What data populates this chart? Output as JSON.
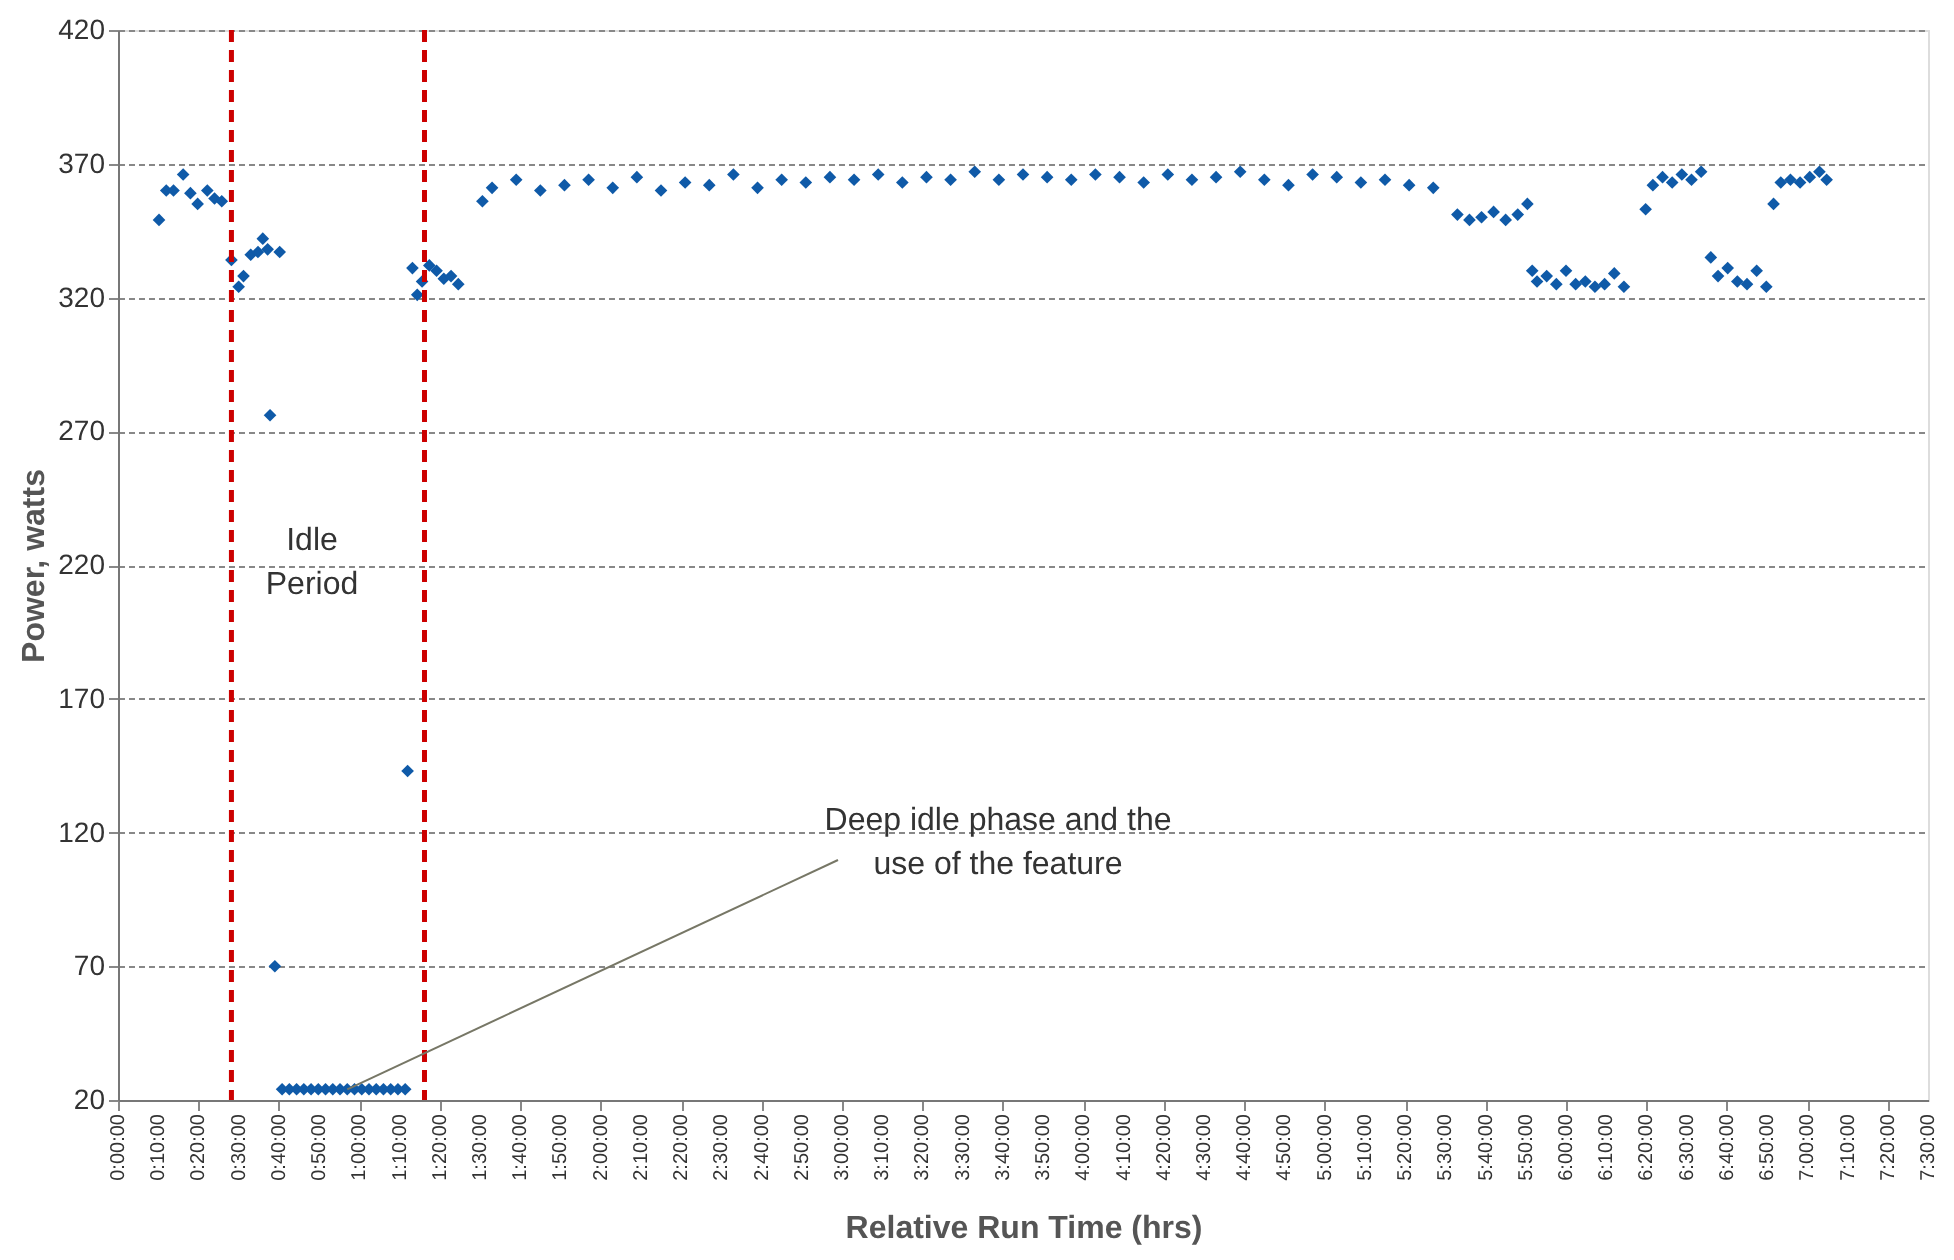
{
  "chart_data": {
    "type": "scatter",
    "xlabel": "Relative Run Time (hrs)",
    "ylabel": "Power, watts",
    "x": [
      0.17,
      0.2,
      0.23,
      0.27,
      0.3,
      0.33,
      0.37,
      0.4,
      0.43,
      0.47,
      0.5,
      0.52,
      0.55,
      0.58,
      0.6,
      0.62,
      0.63,
      0.65,
      0.67,
      0.68,
      0.71,
      0.74,
      0.77,
      0.8,
      0.83,
      0.86,
      0.89,
      0.92,
      0.95,
      0.98,
      1.01,
      1.04,
      1.07,
      1.1,
      1.13,
      1.16,
      1.19,
      1.2,
      1.22,
      1.24,
      1.26,
      1.29,
      1.32,
      1.35,
      1.38,
      1.41,
      1.51,
      1.55,
      1.65,
      1.75,
      1.85,
      1.95,
      2.05,
      2.15,
      2.25,
      2.35,
      2.45,
      2.55,
      2.65,
      2.75,
      2.85,
      2.95,
      3.05,
      3.15,
      3.25,
      3.35,
      3.45,
      3.55,
      3.65,
      3.75,
      3.85,
      3.95,
      4.05,
      4.15,
      4.25,
      4.35,
      4.45,
      4.55,
      4.65,
      4.75,
      4.85,
      4.95,
      5.05,
      5.15,
      5.25,
      5.35,
      5.45,
      5.55,
      5.6,
      5.65,
      5.7,
      5.75,
      5.8,
      5.84,
      5.86,
      5.88,
      5.92,
      5.96,
      6.0,
      6.04,
      6.08,
      6.12,
      6.16,
      6.2,
      6.24,
      6.33,
      6.36,
      6.4,
      6.44,
      6.48,
      6.52,
      6.56,
      6.6,
      6.63,
      6.67,
      6.71,
      6.75,
      6.79,
      6.83,
      6.86,
      6.89,
      6.93,
      6.97,
      7.01,
      7.05,
      7.08
    ],
    "values": [
      349,
      360,
      360,
      366,
      359,
      355,
      360,
      357,
      356,
      334,
      324,
      328,
      336,
      337,
      342,
      338,
      276,
      70,
      337,
      24,
      24,
      24,
      24,
      24,
      24,
      24,
      24,
      24,
      24,
      24,
      24,
      24,
      24,
      24,
      24,
      24,
      24,
      143,
      331,
      321,
      326,
      332,
      330,
      327,
      328,
      325,
      356,
      361,
      364,
      360,
      362,
      364,
      361,
      365,
      360,
      363,
      362,
      366,
      361,
      364,
      363,
      365,
      364,
      366,
      363,
      365,
      364,
      367,
      364,
      366,
      365,
      364,
      366,
      365,
      363,
      366,
      364,
      365,
      367,
      364,
      362,
      366,
      365,
      363,
      364,
      362,
      361,
      351,
      349,
      350,
      352,
      349,
      351,
      355,
      330,
      326,
      328,
      325,
      330,
      325,
      326,
      324,
      325,
      329,
      324,
      353,
      362,
      365,
      363,
      366,
      364,
      367,
      335,
      328,
      331,
      326,
      325,
      330,
      324,
      355,
      363,
      364,
      363,
      365,
      367,
      364
    ],
    "color": "#0f5aa8",
    "marker": "diamond",
    "grid": "y",
    "legend": false,
    "ylim": [
      20,
      420
    ],
    "yticks": [
      20,
      70,
      120,
      170,
      220,
      270,
      320,
      370,
      420
    ],
    "xlim": [
      0,
      7.5
    ],
    "xticks": [
      {
        "value": 0,
        "label": "0:00:00"
      },
      {
        "value": 0.1667,
        "label": "0:10:00"
      },
      {
        "value": 0.3333,
        "label": "0:20:00"
      },
      {
        "value": 0.5,
        "label": "0:30:00"
      },
      {
        "value": 0.6667,
        "label": "0:40:00"
      },
      {
        "value": 0.8333,
        "label": "0:50:00"
      },
      {
        "value": 1,
        "label": "1:00:00"
      },
      {
        "value": 1.1667,
        "label": "1:10:00"
      },
      {
        "value": 1.3333,
        "label": "1:20:00"
      },
      {
        "value": 1.5,
        "label": "1:30:00"
      },
      {
        "value": 1.6667,
        "label": "1:40:00"
      },
      {
        "value": 1.8333,
        "label": "1:50:00"
      },
      {
        "value": 2,
        "label": "2:00:00"
      },
      {
        "value": 2.1667,
        "label": "2:10:00"
      },
      {
        "value": 2.3333,
        "label": "2:20:00"
      },
      {
        "value": 2.5,
        "label": "2:30:00"
      },
      {
        "value": 2.6667,
        "label": "2:40:00"
      },
      {
        "value": 2.8333,
        "label": "2:50:00"
      },
      {
        "value": 3,
        "label": "3:00:00"
      },
      {
        "value": 3.1667,
        "label": "3:10:00"
      },
      {
        "value": 3.3333,
        "label": "3:20:00"
      },
      {
        "value": 3.5,
        "label": "3:30:00"
      },
      {
        "value": 3.6667,
        "label": "3:40:00"
      },
      {
        "value": 3.8333,
        "label": "3:50:00"
      },
      {
        "value": 4,
        "label": "4:00:00"
      },
      {
        "value": 4.1667,
        "label": "4:10:00"
      },
      {
        "value": 4.3333,
        "label": "4:20:00"
      },
      {
        "value": 4.5,
        "label": "4:30:00"
      },
      {
        "value": 4.6667,
        "label": "4:40:00"
      },
      {
        "value": 4.8333,
        "label": "4:50:00"
      },
      {
        "value": 5,
        "label": "5:00:00"
      },
      {
        "value": 5.1667,
        "label": "5:10:00"
      },
      {
        "value": 5.3333,
        "label": "5:20:00"
      },
      {
        "value": 5.5,
        "label": "5:30:00"
      },
      {
        "value": 5.6667,
        "label": "5:40:00"
      },
      {
        "value": 5.8333,
        "label": "5:50:00"
      },
      {
        "value": 6,
        "label": "6:00:00"
      },
      {
        "value": 6.1667,
        "label": "6:10:00"
      },
      {
        "value": 6.3333,
        "label": "6:20:00"
      },
      {
        "value": 6.5,
        "label": "6:30:00"
      },
      {
        "value": 6.6667,
        "label": "6:40:00"
      },
      {
        "value": 6.8333,
        "label": "6:50:00"
      },
      {
        "value": 7,
        "label": "7:00:00"
      },
      {
        "value": 7.1667,
        "label": "7:10:00"
      },
      {
        "value": 7.3333,
        "label": "7:20:00"
      },
      {
        "value": 7.5,
        "label": "7:30:00"
      }
    ],
    "ref_lines": [
      {
        "axis": "x",
        "value": 0.47,
        "color": "#cc0000",
        "line_style": "dashed"
      },
      {
        "axis": "x",
        "value": 1.27,
        "color": "#cc0000",
        "line_style": "dashed"
      }
    ],
    "annotations": [
      "Idle Period",
      {
        "text": "Deep idle phase and the use of the feature",
        "x": 0.95,
        "y": 24
      }
    ]
  }
}
